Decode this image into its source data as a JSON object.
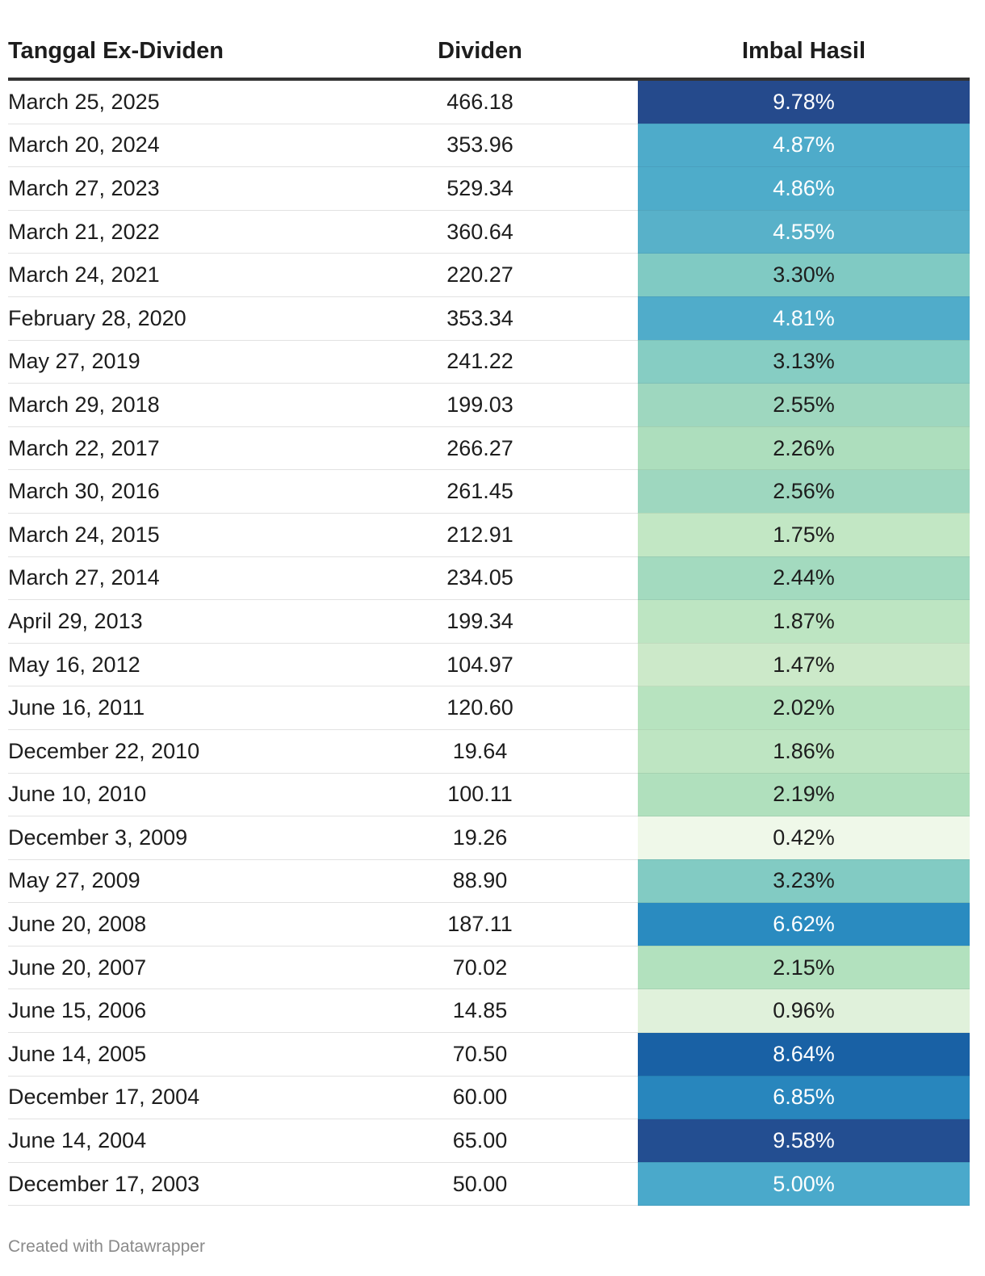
{
  "chart_data": {
    "type": "table",
    "columns": [
      "Tanggal Ex-Dividen",
      "Dividen",
      "Imbal Hasil"
    ],
    "rows": [
      {
        "date": "March 25, 2025",
        "dividend": "466.18",
        "yield": "9.78%",
        "yield_value": 9.78
      },
      {
        "date": "March 20, 2024",
        "dividend": "353.96",
        "yield": "4.87%",
        "yield_value": 4.87
      },
      {
        "date": "March 27, 2023",
        "dividend": "529.34",
        "yield": "4.86%",
        "yield_value": 4.86
      },
      {
        "date": "March 21, 2022",
        "dividend": "360.64",
        "yield": "4.55%",
        "yield_value": 4.55
      },
      {
        "date": "March 24, 2021",
        "dividend": "220.27",
        "yield": "3.30%",
        "yield_value": 3.3
      },
      {
        "date": "February 28, 2020",
        "dividend": "353.34",
        "yield": "4.81%",
        "yield_value": 4.81
      },
      {
        "date": "May 27, 2019",
        "dividend": "241.22",
        "yield": "3.13%",
        "yield_value": 3.13
      },
      {
        "date": "March 29, 2018",
        "dividend": "199.03",
        "yield": "2.55%",
        "yield_value": 2.55
      },
      {
        "date": "March 22, 2017",
        "dividend": "266.27",
        "yield": "2.26%",
        "yield_value": 2.26
      },
      {
        "date": "March 30, 2016",
        "dividend": "261.45",
        "yield": "2.56%",
        "yield_value": 2.56
      },
      {
        "date": "March 24, 2015",
        "dividend": "212.91",
        "yield": "1.75%",
        "yield_value": 1.75
      },
      {
        "date": "March 27, 2014",
        "dividend": "234.05",
        "yield": "2.44%",
        "yield_value": 2.44
      },
      {
        "date": "April 29, 2013",
        "dividend": "199.34",
        "yield": "1.87%",
        "yield_value": 1.87
      },
      {
        "date": "May 16, 2012",
        "dividend": "104.97",
        "yield": "1.47%",
        "yield_value": 1.47
      },
      {
        "date": "June 16, 2011",
        "dividend": "120.60",
        "yield": "2.02%",
        "yield_value": 2.02
      },
      {
        "date": "December 22, 2010",
        "dividend": "19.64",
        "yield": "1.86%",
        "yield_value": 1.86
      },
      {
        "date": "June 10, 2010",
        "dividend": "100.11",
        "yield": "2.19%",
        "yield_value": 2.19
      },
      {
        "date": "December 3, 2009",
        "dividend": "19.26",
        "yield": "0.42%",
        "yield_value": 0.42
      },
      {
        "date": "May 27, 2009",
        "dividend": "88.90",
        "yield": "3.23%",
        "yield_value": 3.23
      },
      {
        "date": "June 20, 2008",
        "dividend": "187.11",
        "yield": "6.62%",
        "yield_value": 6.62
      },
      {
        "date": "June 20, 2007",
        "dividend": "70.02",
        "yield": "2.15%",
        "yield_value": 2.15
      },
      {
        "date": "June 15, 2006",
        "dividend": "14.85",
        "yield": "0.96%",
        "yield_value": 0.96
      },
      {
        "date": "June 14, 2005",
        "dividend": "70.50",
        "yield": "8.64%",
        "yield_value": 8.64
      },
      {
        "date": "December 17, 2004",
        "dividend": "60.00",
        "yield": "6.85%",
        "yield_value": 6.85
      },
      {
        "date": "June 14, 2004",
        "dividend": "65.00",
        "yield": "9.58%",
        "yield_value": 9.58
      },
      {
        "date": "December 17, 2003",
        "dividend": "50.00",
        "yield": "5.00%",
        "yield_value": 5.0
      }
    ],
    "color_scale": {
      "stops": [
        {
          "value": 0.4,
          "color": "#f0f8e9"
        },
        {
          "value": 1.0,
          "color": "#dff1da"
        },
        {
          "value": 1.5,
          "color": "#cbe9c8"
        },
        {
          "value": 1.9,
          "color": "#bce5c1"
        },
        {
          "value": 2.2,
          "color": "#b0e0bd"
        },
        {
          "value": 2.5,
          "color": "#a0d8bf"
        },
        {
          "value": 3.2,
          "color": "#83ccc3"
        },
        {
          "value": 4.5,
          "color": "#5ab2c9"
        },
        {
          "value": 5.0,
          "color": "#4aa9cb"
        },
        {
          "value": 6.6,
          "color": "#2a8bc0"
        },
        {
          "value": 8.6,
          "color": "#1962a6"
        },
        {
          "value": 9.8,
          "color": "#254a8c"
        }
      ],
      "light_text": "#ffffff",
      "dark_text": "#1d1d1d"
    }
  },
  "footer": {
    "credit": "Created with Datawrapper"
  }
}
